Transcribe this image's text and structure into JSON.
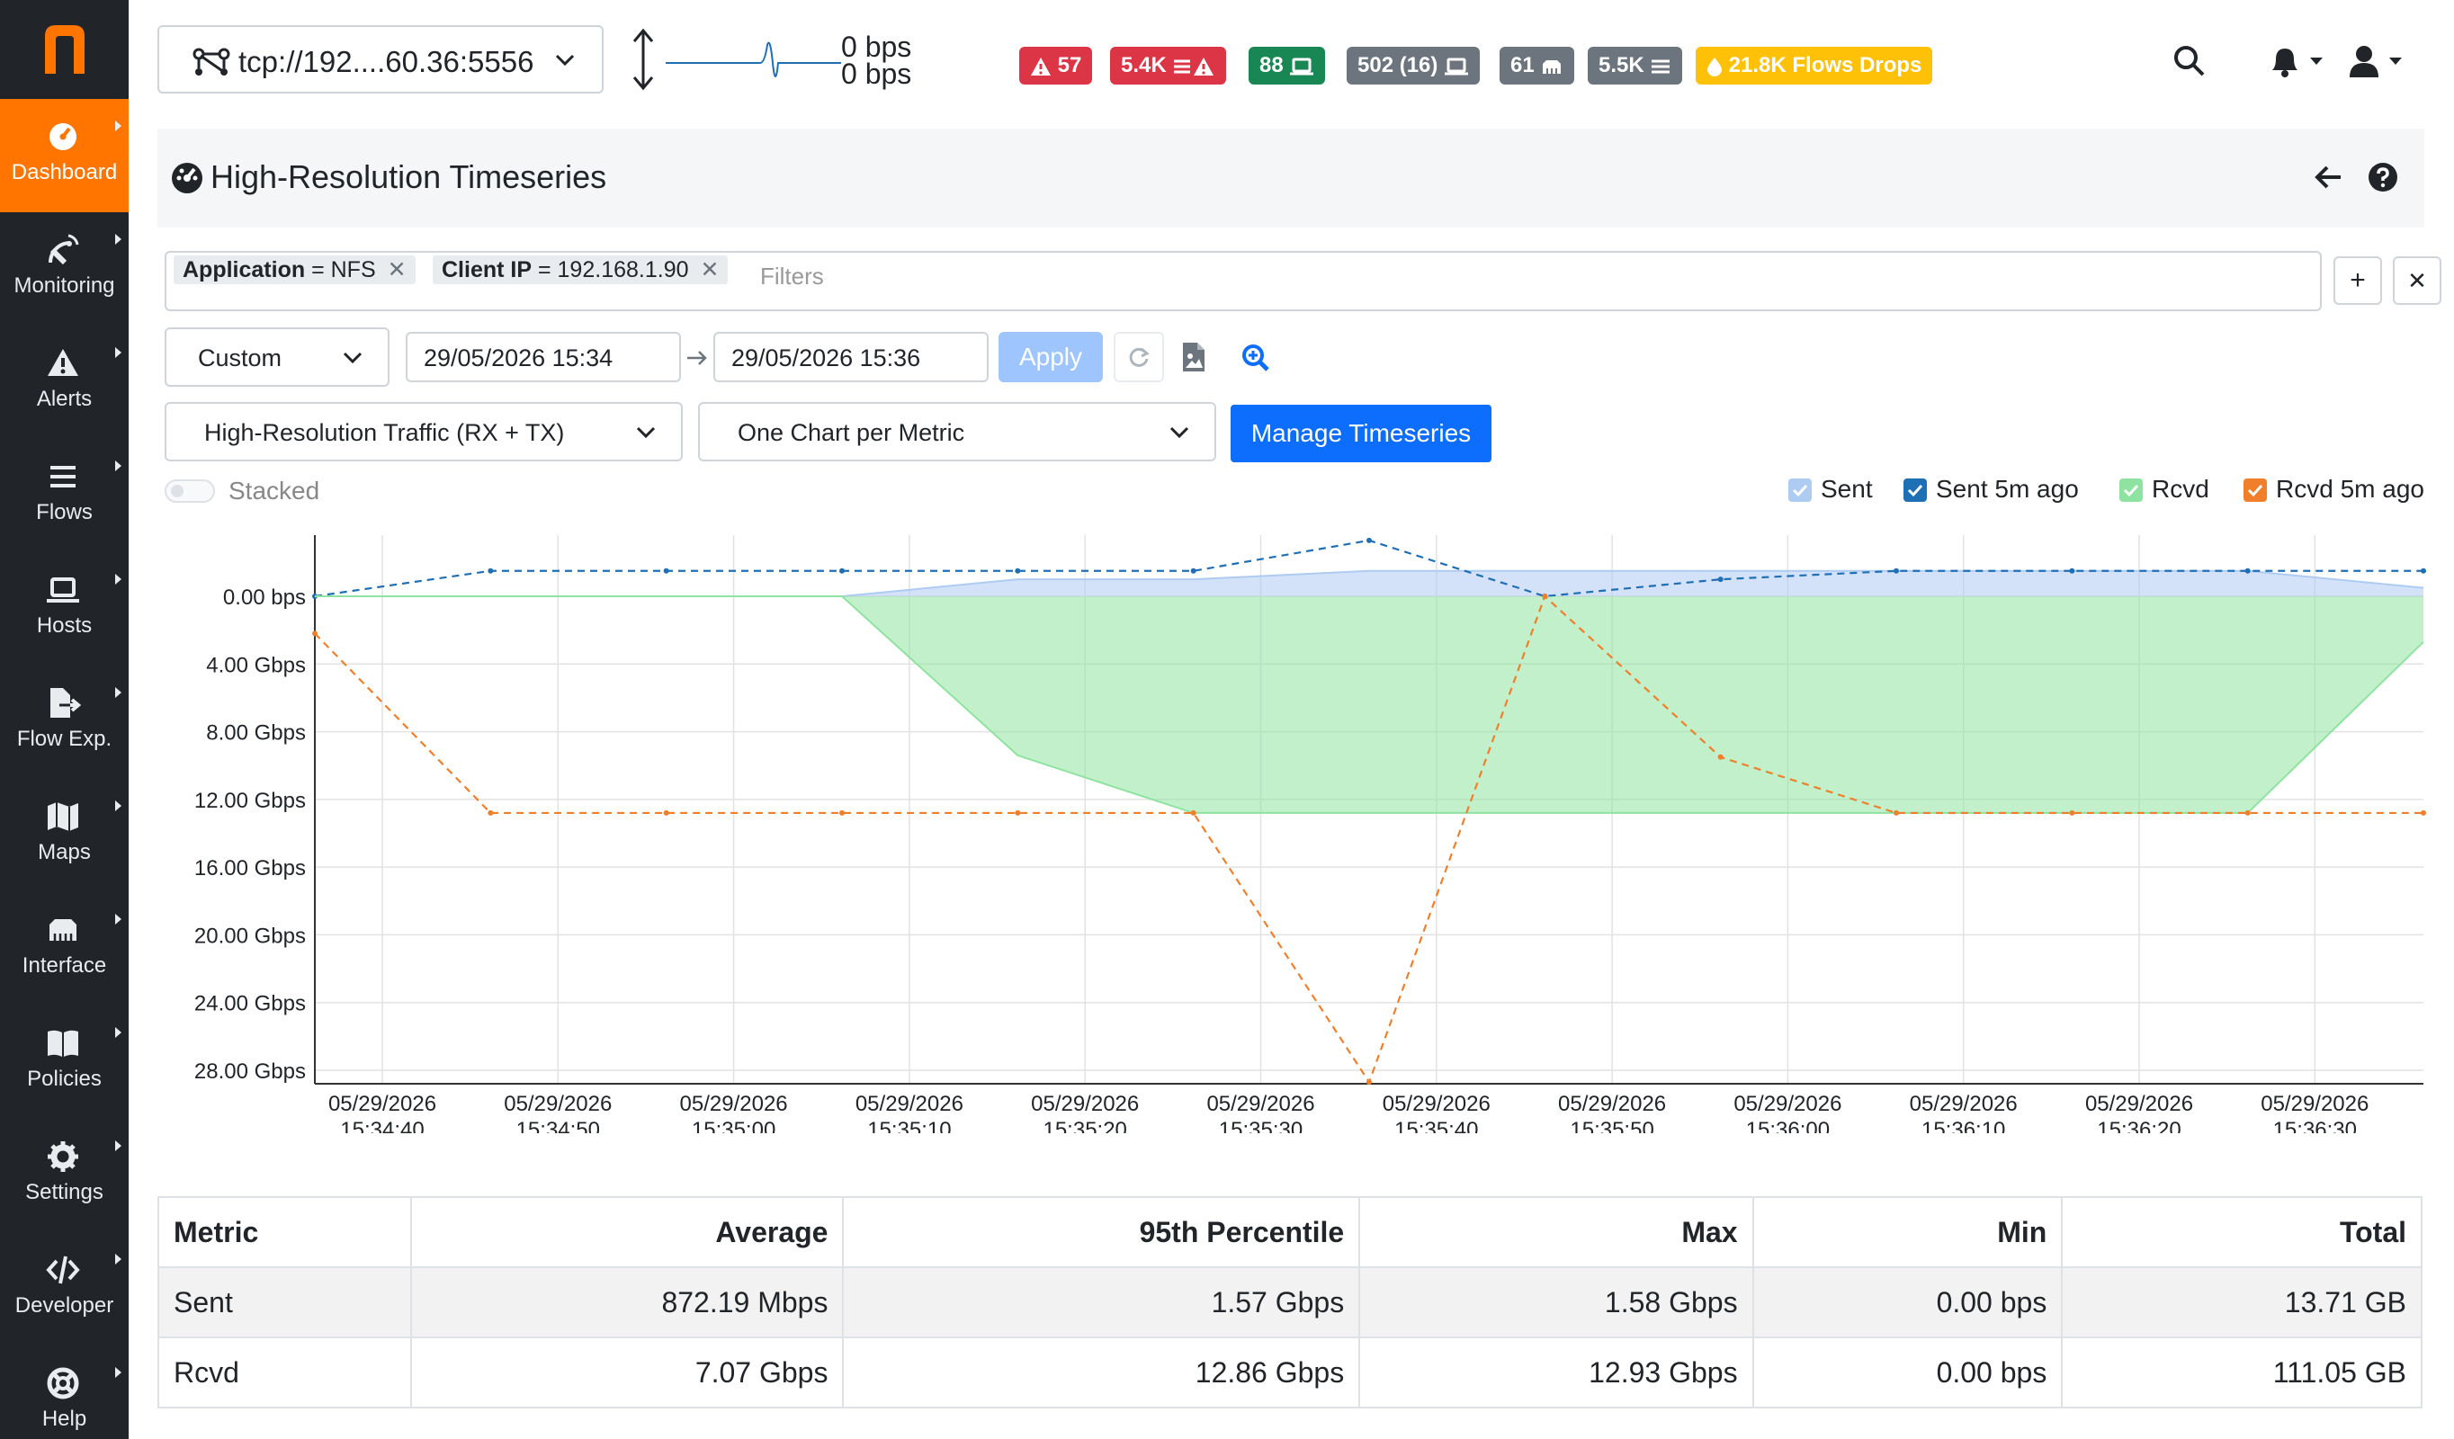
{
  "sidebar": {
    "logo_letter": "n",
    "items": [
      {
        "label": "Dashboard",
        "icon": "gauge-icon",
        "active": true
      },
      {
        "label": "Monitoring",
        "icon": "satellite-dish-icon",
        "active": false
      },
      {
        "label": "Alerts",
        "icon": "warning-icon",
        "active": false
      },
      {
        "label": "Flows",
        "icon": "bars-icon",
        "active": false
      },
      {
        "label": "Hosts",
        "icon": "laptop-icon",
        "active": false
      },
      {
        "label": "Flow Exp.",
        "icon": "file-export-icon",
        "active": false
      },
      {
        "label": "Maps",
        "icon": "map-icon",
        "active": false
      },
      {
        "label": "Interface",
        "icon": "ethernet-icon",
        "active": false
      },
      {
        "label": "Policies",
        "icon": "book-icon",
        "active": false
      },
      {
        "label": "Settings",
        "icon": "gear-icon",
        "active": false
      },
      {
        "label": "Developer",
        "icon": "code-icon",
        "active": false
      },
      {
        "label": "Help",
        "icon": "life-ring-icon",
        "active": false
      }
    ]
  },
  "topbar": {
    "interface": "tcp://192....60.36:5556",
    "traffic_up": "0 bps",
    "traffic_down": "0 bps",
    "badges": [
      {
        "text": "57",
        "color": "#dc3545",
        "icon": "warning-icon"
      },
      {
        "text": "5.4K",
        "color": "#dc3545",
        "icon": "bars-warning-icon"
      },
      {
        "text": "88",
        "color": "#198754",
        "icon": "laptop-icon"
      },
      {
        "text": "502 (16)",
        "color": "#6c757d",
        "icon": "laptop-icon"
      },
      {
        "text": "61",
        "color": "#6c757d",
        "icon": "ethernet-icon"
      },
      {
        "text": "5.5K",
        "color": "#6c757d",
        "icon": "bars-icon"
      },
      {
        "text": "21.8K Flows Drops",
        "color": "#ffc107",
        "icon": "drop-icon"
      }
    ]
  },
  "page": {
    "title": "High-Resolution Timeseries"
  },
  "filters": {
    "chips": [
      {
        "key": "Application",
        "op": "=",
        "value": "NFS"
      },
      {
        "key": "Client IP",
        "op": "=",
        "value": "192.168.1.90"
      }
    ],
    "placeholder": "Filters",
    "add_label": "+",
    "clear_label": "✕"
  },
  "controls": {
    "range_preset": "Custom",
    "date_from": "29/05/2026 15:34",
    "date_to": "29/05/2026 15:36",
    "apply_label": "Apply",
    "timeseries_select": "High-Resolution Traffic (RX + TX)",
    "layout_select": "One Chart per Metric",
    "manage_label": "Manage Timeseries",
    "stacked_label": "Stacked"
  },
  "legend": [
    {
      "label": "Sent",
      "color": "#aecbf2",
      "checked": true
    },
    {
      "label": "Sent 5m ago",
      "color": "#1f6fb5",
      "checked": true
    },
    {
      "label": "Rcvd",
      "color": "#8fe3a0",
      "checked": true
    },
    {
      "label": "Rcvd 5m ago",
      "color": "#f07f2b",
      "checked": true
    }
  ],
  "chart_data": {
    "type": "area",
    "x": [
      "15:34:35",
      "15:34:45",
      "15:34:55",
      "15:35:05",
      "15:35:15",
      "15:35:25",
      "15:35:35",
      "15:35:45",
      "15:35:55",
      "15:36:05",
      "15:36:15",
      "15:36:25",
      "15:36:35"
    ],
    "x_tick_labels": [
      [
        "05/29/2026",
        "15:34:40"
      ],
      [
        "05/29/2026",
        "15:34:50"
      ],
      [
        "05/29/2026",
        "15:35:00"
      ],
      [
        "05/29/2026",
        "15:35:10"
      ],
      [
        "05/29/2026",
        "15:35:20"
      ],
      [
        "05/29/2026",
        "15:35:30"
      ],
      [
        "05/29/2026",
        "15:35:40"
      ],
      [
        "05/29/2026",
        "15:35:50"
      ],
      [
        "05/29/2026",
        "15:36:00"
      ],
      [
        "05/29/2026",
        "15:36:10"
      ],
      [
        "05/29/2026",
        "15:36:20"
      ],
      [
        "05/29/2026",
        "15:36:30"
      ]
    ],
    "y_tick_labels": [
      "0.00 bps",
      "4.00 Gbps",
      "8.00 Gbps",
      "12.00 Gbps",
      "16.00 Gbps",
      "20.00 Gbps",
      "24.00 Gbps",
      "28.00 Gbps"
    ],
    "y_ticks": [
      0,
      4,
      8,
      12,
      16,
      20,
      24,
      28
    ],
    "y_unit": "Gbps",
    "ylim": [
      -3.5,
      28.5
    ],
    "inverted_y": true,
    "grid": true,
    "series": [
      {
        "name": "Sent",
        "style": "area",
        "color": "#aecbf2",
        "values": [
          0,
          0,
          0,
          0,
          -1,
          -1,
          -1.5,
          -1.5,
          -1.5,
          -1.5,
          -1.5,
          -1.5,
          -0.5
        ]
      },
      {
        "name": "Sent 5m ago",
        "style": "dashed",
        "color": "#1f6fb5",
        "values": [
          0,
          -1.5,
          -1.5,
          -1.5,
          -1.5,
          -1.5,
          -3.3,
          0,
          -1,
          -1.5,
          -1.5,
          -1.5,
          -1.5
        ]
      },
      {
        "name": "Rcvd",
        "style": "area",
        "color": "#8fe3a0",
        "values": [
          0,
          0,
          0,
          0,
          9.4,
          12.8,
          12.8,
          12.8,
          12.8,
          12.8,
          12.8,
          12.8,
          2.7
        ]
      },
      {
        "name": "Rcvd 5m ago",
        "style": "dashed",
        "color": "#f07f2b",
        "values": [
          2.2,
          12.8,
          12.8,
          12.8,
          12.8,
          12.8,
          28.7,
          0,
          9.5,
          12.8,
          12.8,
          12.8,
          12.8
        ]
      }
    ]
  },
  "stats": {
    "headers": [
      "Metric",
      "Average",
      "95th Percentile",
      "Max",
      "Min",
      "Total"
    ],
    "rows": [
      [
        "Sent",
        "872.19 Mbps",
        "1.57 Gbps",
        "1.58 Gbps",
        "0.00 bps",
        "13.71 GB"
      ],
      [
        "Rcvd",
        "7.07 Gbps",
        "12.86 Gbps",
        "12.93 Gbps",
        "0.00 bps",
        "111.05 GB"
      ]
    ]
  }
}
